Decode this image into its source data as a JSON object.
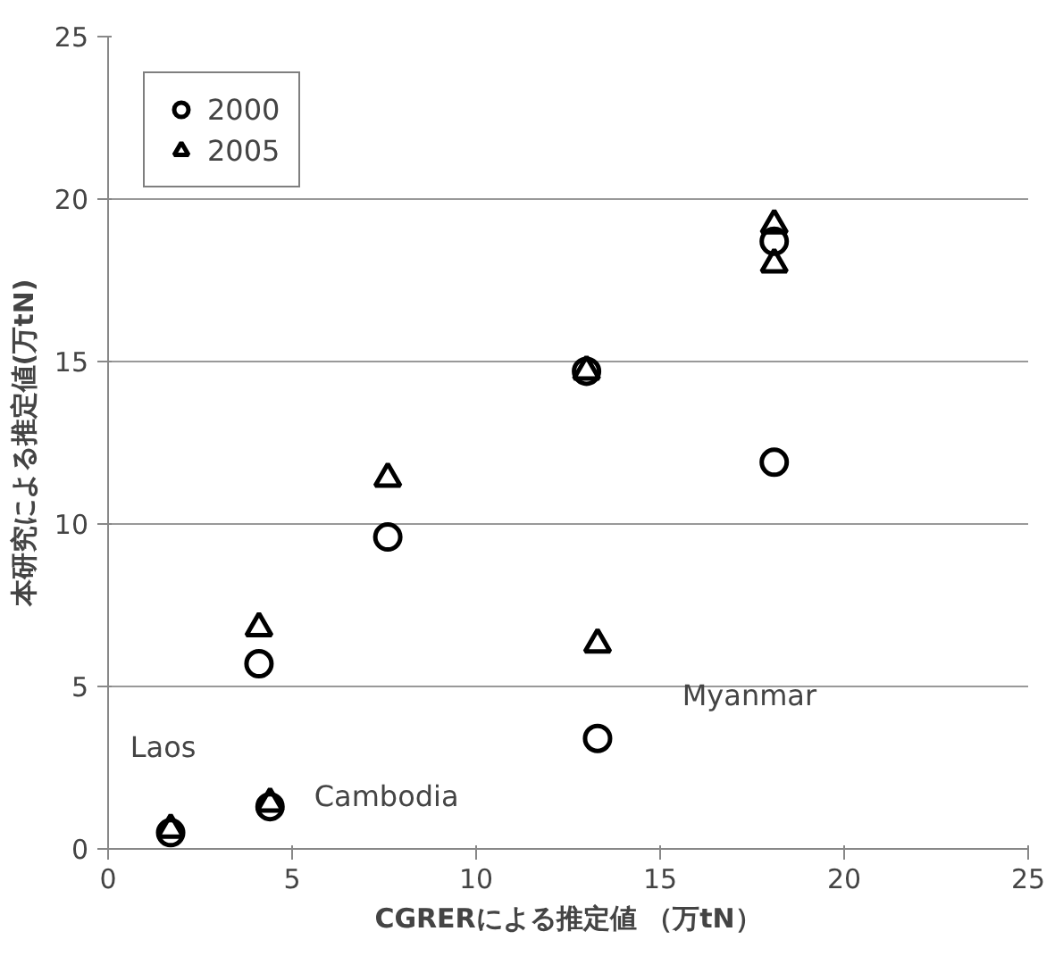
{
  "chart_data": {
    "type": "scatter",
    "xlabel": "CGRERによる推定値 （万tN）",
    "ylabel": "本研究による推定値(万tN)",
    "series": [
      {
        "name": "2000",
        "color": "#000000",
        "marker": "circle",
        "x": [
          1.7,
          4.4,
          4.1,
          7.6,
          13.0,
          13.3,
          18.1,
          18.1
        ],
        "values": [
          0.5,
          1.3,
          5.7,
          9.6,
          14.7,
          3.4,
          11.9,
          18.7
        ]
      },
      {
        "name": "2005",
        "color": "#000000",
        "marker": "triangle",
        "x": [
          1.7,
          4.4,
          4.1,
          7.6,
          13.0,
          13.3,
          18.1,
          18.1
        ],
        "values": [
          0.6,
          1.4,
          6.8,
          11.4,
          14.7,
          6.3,
          19.2,
          18.0
        ]
      }
    ],
    "xlim": [
      0,
      25
    ],
    "ylim": [
      0,
      25
    ],
    "xticks": [
      0,
      5,
      10,
      15,
      20,
      25
    ],
    "yticks": [
      0,
      5,
      10,
      15,
      20,
      25
    ],
    "grid": "y",
    "legend": "top left",
    "annotations": [
      "Laos",
      "Cambodia",
      "Myanmar"
    ]
  }
}
